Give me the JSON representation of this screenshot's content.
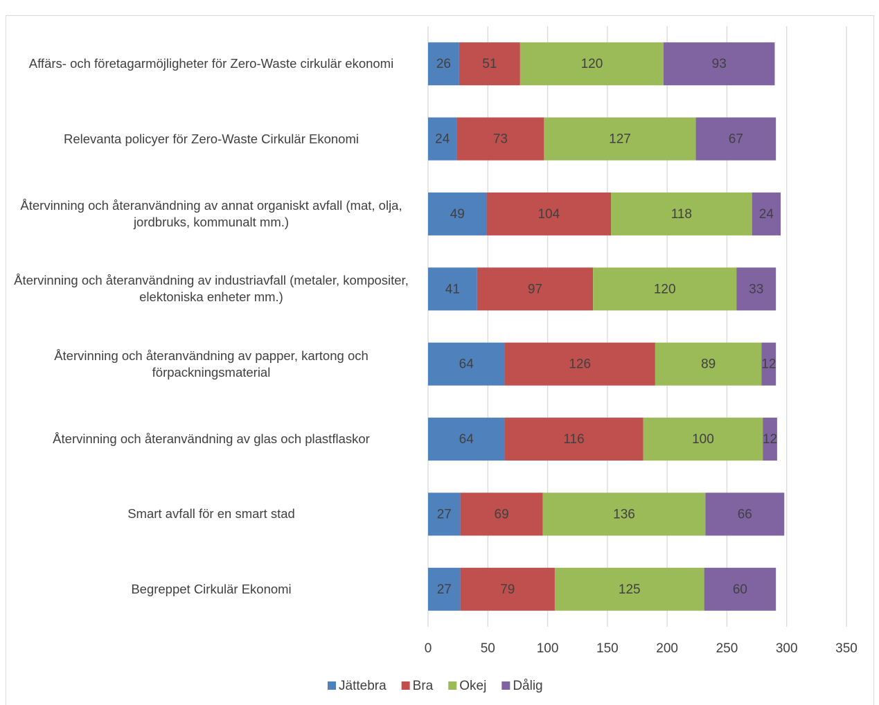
{
  "chart_data": {
    "type": "stacked-bar-horizontal",
    "categories": [
      "Affärs- och företagarmöjligheter för Zero-Waste cirkulär ekonomi",
      "Relevanta policyer för Zero-Waste Cirkulär Ekonomi",
      "Återvinning och återanvändning av annat organiskt avfall (mat, olja, jordbruks, kommunalt mm.)",
      "Återvinning och återanvändning av industriavfall (metaler, kompositer, elektoniska enheter mm.)",
      "Återvinning och återanvändning av papper, kartong och förpackningsmaterial",
      "Återvinning och återanvändning av glas och plastflaskor",
      "Smart avfall för en smart stad",
      "Begreppet Cirkulär Ekonomi"
    ],
    "series": [
      {
        "name": "Jättebra",
        "color": "#4f81bd",
        "values": [
          26,
          24,
          49,
          41,
          64,
          64,
          27,
          27
        ]
      },
      {
        "name": "Bra",
        "color": "#c0504d",
        "values": [
          51,
          73,
          104,
          97,
          126,
          116,
          69,
          79
        ]
      },
      {
        "name": "Okej",
        "color": "#9bbb59",
        "values": [
          120,
          127,
          118,
          120,
          89,
          100,
          136,
          125
        ]
      },
      {
        "name": "Dålig",
        "color": "#8064a2",
        "values": [
          93,
          67,
          24,
          33,
          12,
          12,
          66,
          60
        ]
      }
    ],
    "xlim": [
      0,
      350
    ],
    "xticks": [
      0,
      50,
      100,
      150,
      200,
      250,
      300,
      350
    ],
    "grid": true,
    "legend": "bottom"
  }
}
